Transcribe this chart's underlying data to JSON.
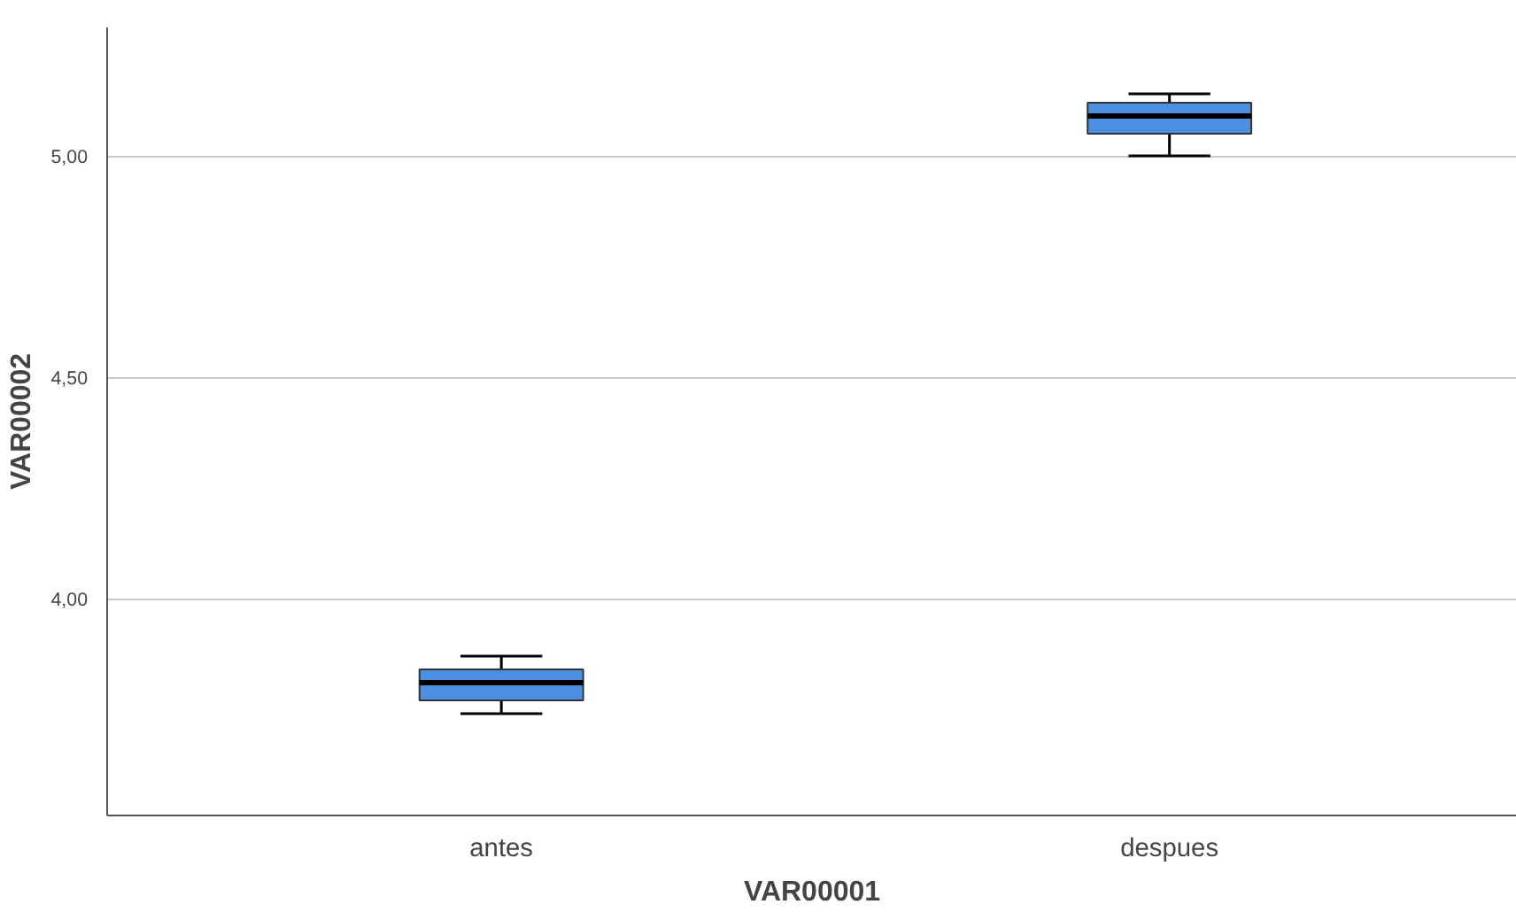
{
  "chart_data": {
    "type": "box",
    "xlabel": "VAR00001",
    "ylabel": "VAR00002",
    "categories": [
      "antes",
      "despues"
    ],
    "series": [
      {
        "color": "#4a8fe0",
        "boxes": [
          {
            "low": 3.74,
            "q1": 3.77,
            "median": 3.81,
            "q3": 3.84,
            "high": 3.87
          },
          {
            "low": 5.0,
            "q1": 5.05,
            "median": 5.09,
            "q3": 5.12,
            "high": 5.14
          }
        ]
      }
    ],
    "ylim": [
      3.51,
      5.29
    ],
    "yticks": [
      {
        "value": 4.0,
        "label": "4,00"
      },
      {
        "value": 4.5,
        "label": "4,50"
      },
      {
        "value": 5.0,
        "label": "5,00"
      }
    ],
    "grid": "y"
  }
}
